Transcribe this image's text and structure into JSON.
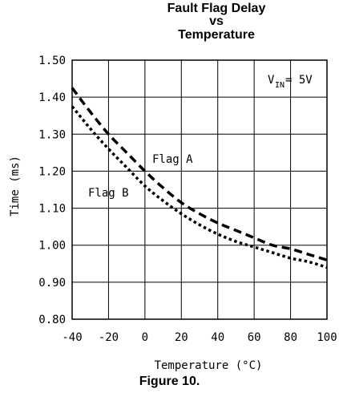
{
  "chart_data": {
    "type": "line",
    "title_lines": [
      "Fault Flag Delay",
      "vs",
      "Temperature"
    ],
    "xlabel": "Temperature (°C)",
    "ylabel": "Time (ms)",
    "xlim": [
      -40,
      100
    ],
    "ylim": [
      0.8,
      1.5
    ],
    "xticks": [
      "-40",
      "-20",
      "0",
      "20",
      "40",
      "60",
      "80",
      "100"
    ],
    "yticks": [
      "0.80",
      "0.90",
      "1.00",
      "1.10",
      "1.20",
      "1.30",
      "1.40",
      "1.50"
    ],
    "grid": true,
    "annotation": {
      "main": "V",
      "sub": "IN",
      "rest": " = 5V"
    },
    "series": [
      {
        "name": "Flag A",
        "style": "dashed",
        "x": [
          -40,
          -30,
          -20,
          -10,
          0,
          10,
          20,
          30,
          40,
          50,
          60,
          70,
          80,
          90,
          100
        ],
        "y": [
          1.425,
          1.36,
          1.3,
          1.25,
          1.2,
          1.155,
          1.115,
          1.085,
          1.06,
          1.04,
          1.02,
          1.0,
          0.99,
          0.975,
          0.96
        ]
      },
      {
        "name": "Flag B",
        "style": "dotted",
        "x": [
          -40,
          -30,
          -20,
          -10,
          0,
          10,
          20,
          30,
          40,
          50,
          60,
          70,
          80,
          90,
          100
        ],
        "y": [
          1.375,
          1.315,
          1.26,
          1.21,
          1.16,
          1.12,
          1.085,
          1.055,
          1.03,
          1.01,
          0.995,
          0.98,
          0.965,
          0.955,
          0.94
        ]
      }
    ]
  },
  "figure_label": "Figure 10."
}
